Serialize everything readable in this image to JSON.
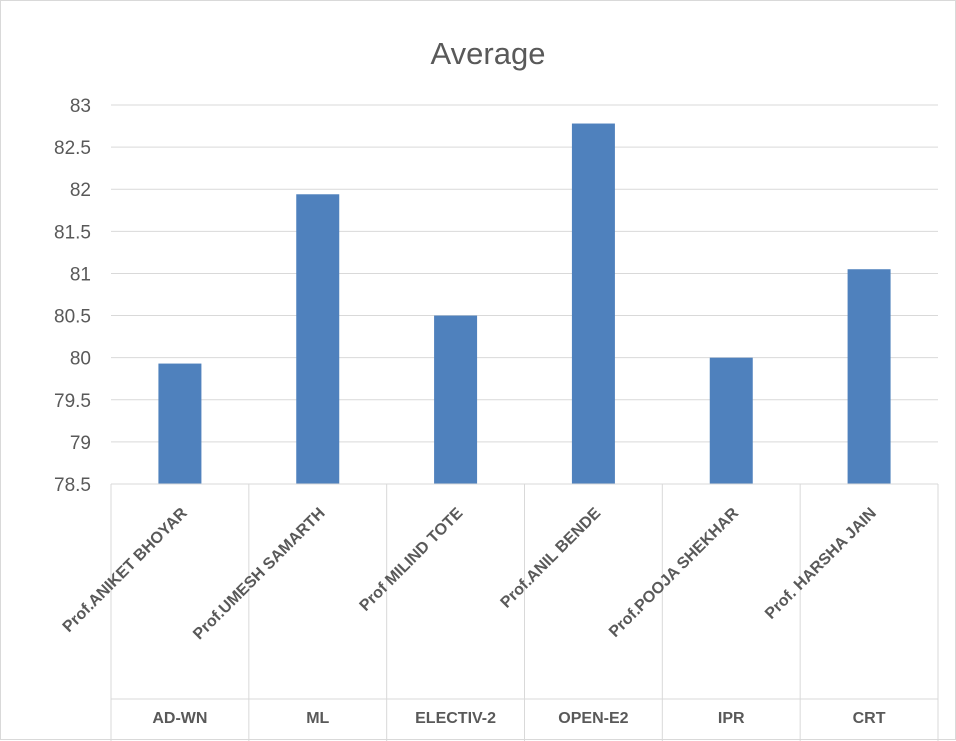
{
  "chart_data": {
    "type": "bar",
    "title": "Average",
    "categories": [
      {
        "label": "Prof.ANIKET BHOYAR",
        "group": "AD-WN"
      },
      {
        "label": "Prof.UMESH SAMARTH",
        "group": "ML"
      },
      {
        "label": "Prof MILIND TOTE",
        "group": "ELECTIV-2"
      },
      {
        "label": "Prof.ANIL BENDE",
        "group": "OPEN-E2"
      },
      {
        "label": "Prof.POOJA SHEKHAR",
        "group": "IPR"
      },
      {
        "label": "Prof. HARSHA JAIN",
        "group": "CRT"
      }
    ],
    "values": [
      79.93,
      81.94,
      80.5,
      82.78,
      80.0,
      81.05
    ],
    "yticks": [
      "78.5",
      "79",
      "79.5",
      "80",
      "80.5",
      "81",
      "81.5",
      "82",
      "82.5",
      "83"
    ],
    "ylim": [
      78.5,
      83
    ],
    "grid": true,
    "legend": "none",
    "bar_color": "#4f81bd",
    "grid_color": "#d9d9d9",
    "text_color": "#595959"
  }
}
